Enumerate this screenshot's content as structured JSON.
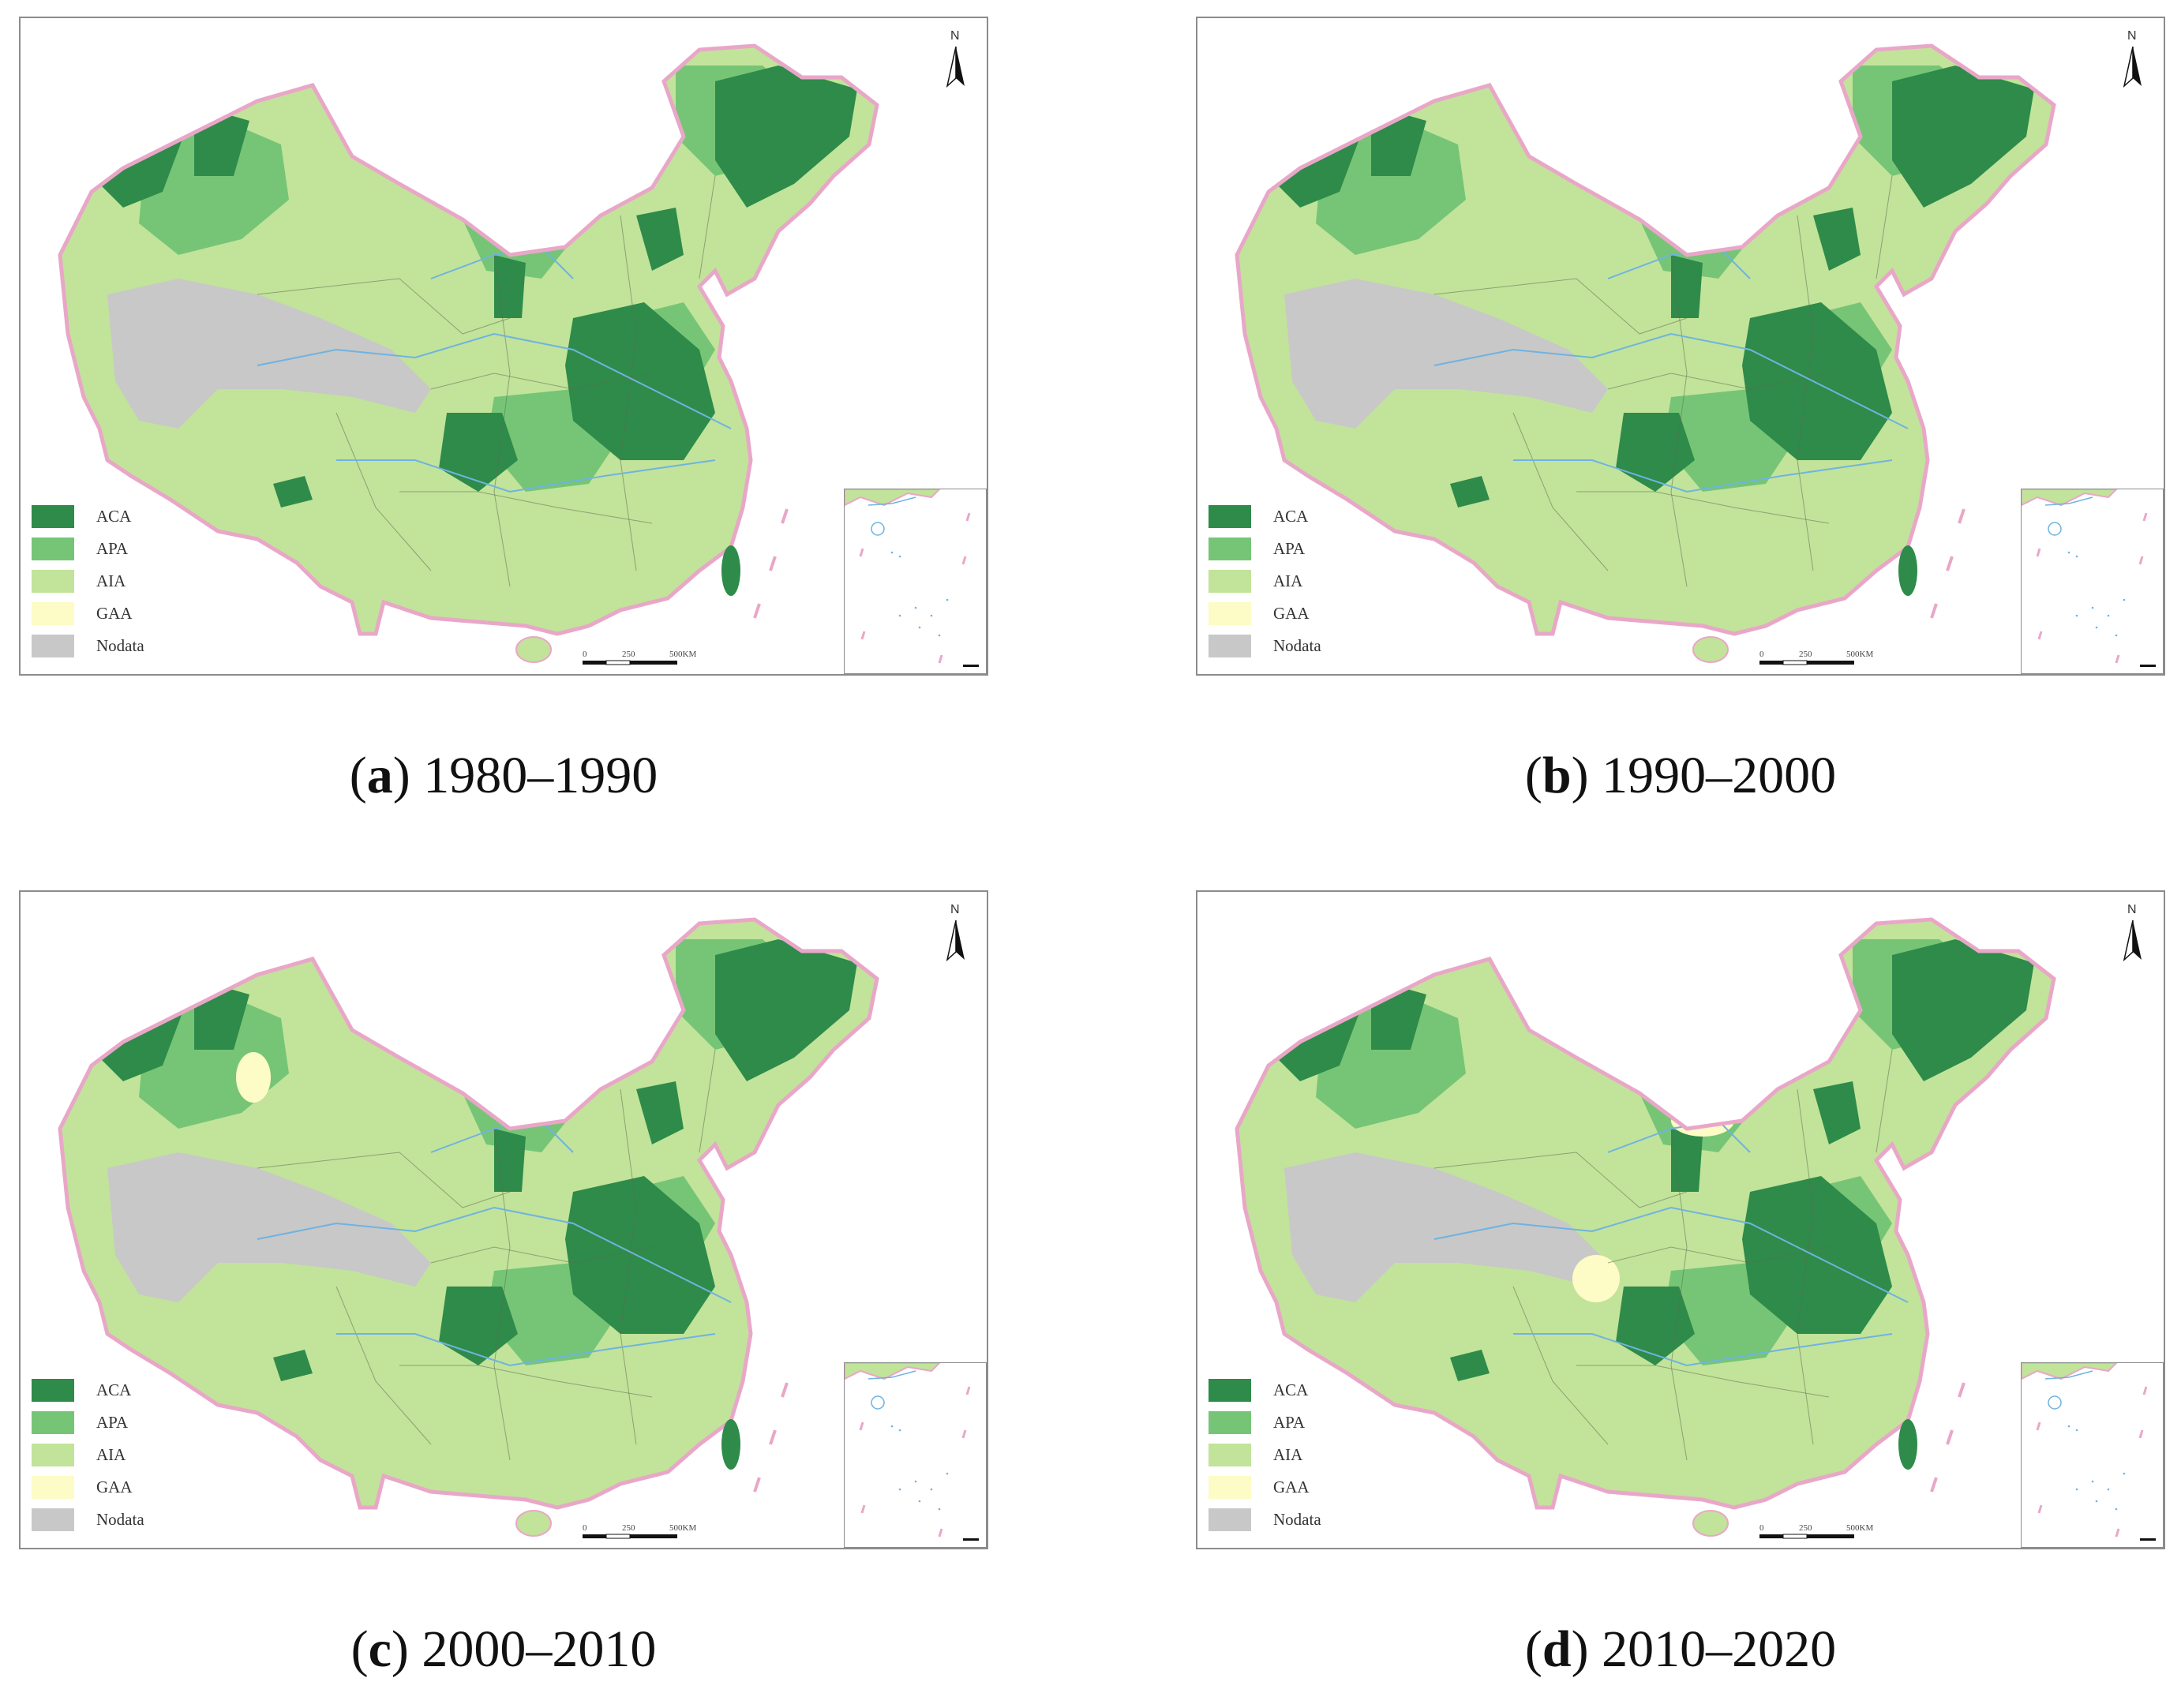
{
  "colors": {
    "ACA": "#2e8b4a",
    "APA": "#76c576",
    "AIA": "#c2e39a",
    "GAA": "#fdfbc6",
    "Nodata": "#c8c8c8",
    "border": "#e9a7c8",
    "river": "#6fb3e0",
    "province": "#5e6e52"
  },
  "legend": [
    {
      "key": "ACA",
      "label": "ACA",
      "color": "#2e8b4a"
    },
    {
      "key": "APA",
      "label": "APA",
      "color": "#76c576"
    },
    {
      "key": "AIA",
      "label": "AIA",
      "color": "#c2e39a"
    },
    {
      "key": "GAA",
      "label": "GAA",
      "color": "#fdfbc6"
    },
    {
      "key": "Nodata",
      "label": "Nodata",
      "color": "#c8c8c8"
    }
  ],
  "north_label": "N",
  "scale": {
    "labels": [
      "0",
      "250",
      "500KM"
    ]
  },
  "panels": [
    {
      "id": "a",
      "letter": "a",
      "period": "1980–1990"
    },
    {
      "id": "b",
      "letter": "b",
      "period": "1990–2000"
    },
    {
      "id": "c",
      "letter": "c",
      "period": "2000–2010"
    },
    {
      "id": "d",
      "letter": "d",
      "period": "2010–2020"
    }
  ]
}
